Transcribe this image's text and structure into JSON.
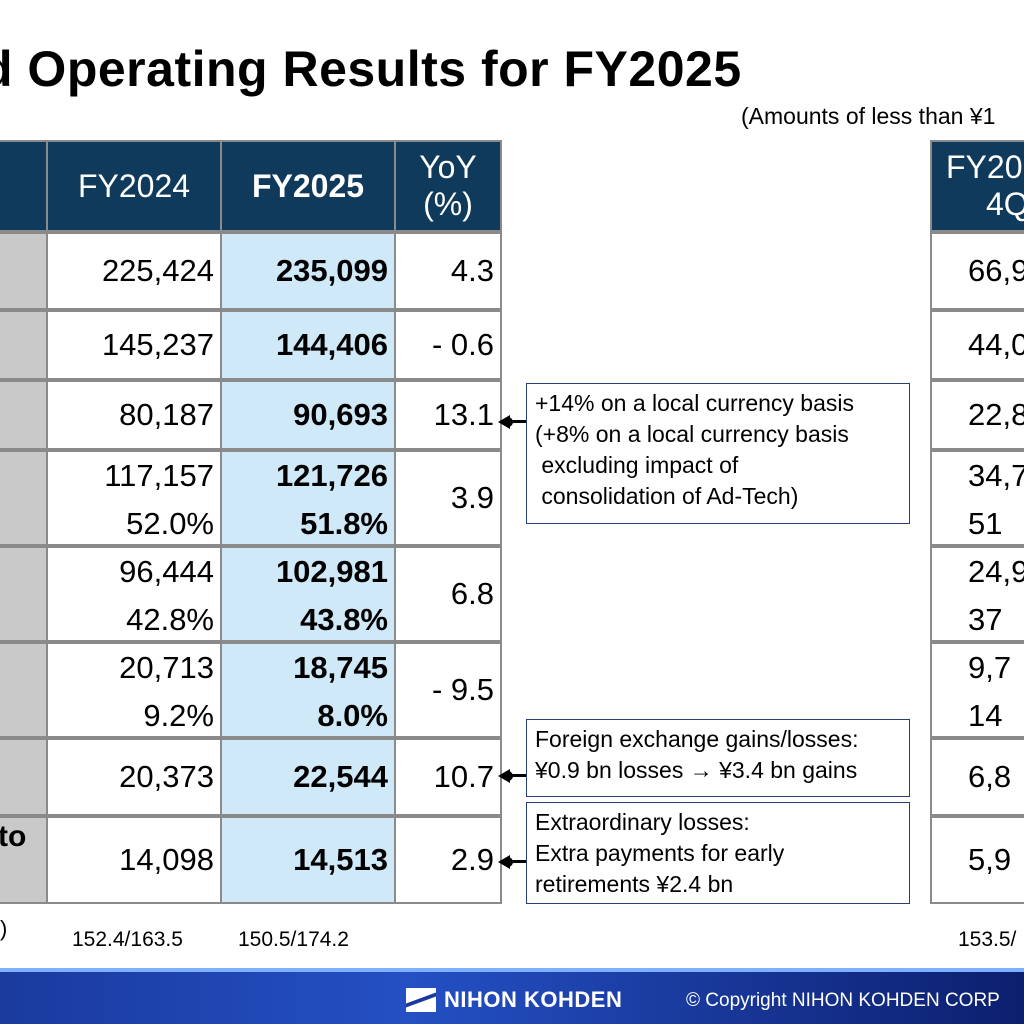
{
  "title": "d Operating Results for FY2025",
  "note": "(Amounts of less than ¥1",
  "headers": {
    "fy2024": "FY2024",
    "fy2025": "FY2025",
    "yoy_line1": "YoY",
    "yoy_line2": "(%)",
    "right_line1": "FY20",
    "right_line2": "4Q"
  },
  "rows": [
    {
      "fy2024": "225,424",
      "fy2025": "235,099",
      "yoy": "4.3",
      "right": "66,9"
    },
    {
      "fy2024": "145,237",
      "fy2025": "144,406",
      "yoy": "- 0.6",
      "right": "44,0"
    },
    {
      "fy2024": "80,187",
      "fy2025": "90,693",
      "yoy": "13.1",
      "right": "22,8"
    },
    {
      "fy2024": "117,157",
      "fy2024_pct": "52.0%",
      "fy2025": "121,726",
      "fy2025_pct": "51.8%",
      "yoy": "3.9",
      "right": "34,7",
      "right_pct": "51"
    },
    {
      "fy2024": "96,444",
      "fy2024_pct": "42.8%",
      "fy2025": "102,981",
      "fy2025_pct": "43.8%",
      "yoy": "6.8",
      "right": "24,9",
      "right_pct": "37"
    },
    {
      "fy2024": "20,713",
      "fy2024_pct": "9.2%",
      "fy2025": "18,745",
      "fy2025_pct": "8.0%",
      "yoy": "- 9.5",
      "right": "9,7",
      "right_pct": "14"
    },
    {
      "fy2024": "20,373",
      "fy2025": "22,544",
      "yoy": "10.7",
      "right": "6,8"
    },
    {
      "fy2024": "14,098",
      "fy2025": "14,513",
      "yoy": "2.9",
      "right": "5,9",
      "label_fragment": "to"
    }
  ],
  "footer": {
    "left_fragment": ")",
    "fy2024_rate": "152.4/163.5",
    "fy2025_rate": "150.5/174.2",
    "right_rate": "153.5/"
  },
  "callouts": {
    "c1": [
      "+14% on a local currency basis",
      "(+8% on a local currency basis",
      " excluding impact of",
      " consolidation of Ad-Tech)"
    ],
    "c2": [
      "Foreign exchange gains/losses:",
      "¥0.9 bn losses → ¥3.4 bn gains"
    ],
    "c3": [
      "Extraordinary losses:",
      "Extra payments for early",
      "retirements ¥2.4 bn"
    ]
  },
  "brand": {
    "logo": "NIHON KOHDEN",
    "copyright": "© Copyright  NIHON KOHDEN CORP"
  },
  "colors": {
    "header_bg": "#0f3a5c",
    "label_bg": "#c9c9c9",
    "fy2025_bg": "#cfe9f8",
    "bar": "#2450c4"
  }
}
